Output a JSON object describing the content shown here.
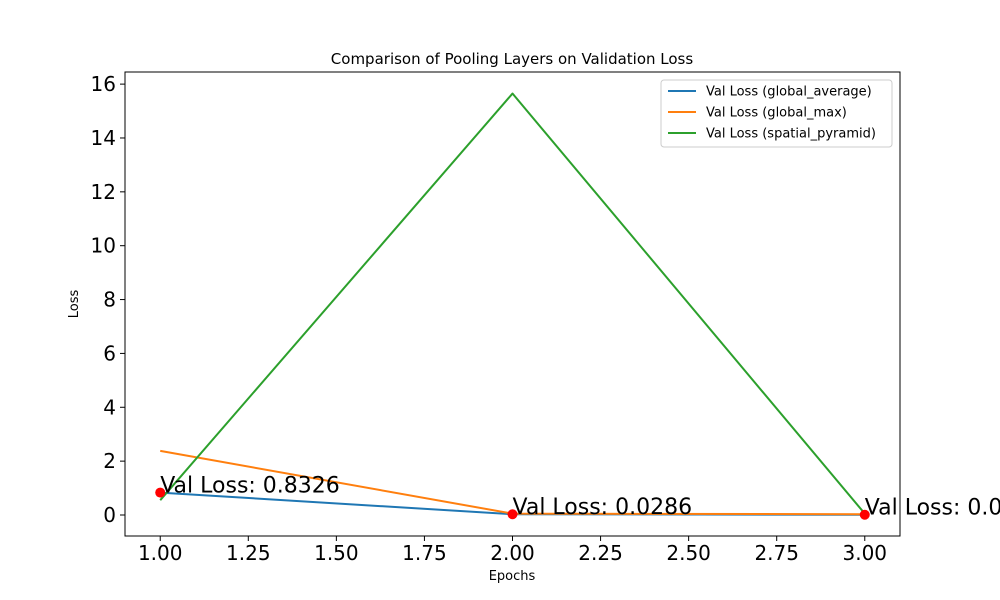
{
  "chart_data": {
    "type": "line",
    "title": "Comparison of Pooling Layers on Validation Loss",
    "xlabel": "Epochs",
    "ylabel": "Loss",
    "xlim": [
      0.9,
      3.1
    ],
    "ylim": [
      -0.78,
      16.45
    ],
    "xticks": [
      1.0,
      1.25,
      1.5,
      1.75,
      2.0,
      2.25,
      2.5,
      2.75,
      3.0
    ],
    "xtick_labels": [
      "1.00",
      "1.25",
      "1.50",
      "1.75",
      "2.00",
      "2.25",
      "2.50",
      "2.75",
      "3.00"
    ],
    "yticks": [
      0,
      2,
      4,
      6,
      8,
      10,
      12,
      14,
      16
    ],
    "ytick_labels": [
      "0",
      "2",
      "4",
      "6",
      "8",
      "10",
      "12",
      "14",
      "16"
    ],
    "grid": false,
    "legend_position": "top-right",
    "series": [
      {
        "name": "Val Loss (global_average)",
        "color": "#1f77b4",
        "x": [
          1,
          2,
          3
        ],
        "y": [
          0.8326,
          0.0286,
          0.01
        ]
      },
      {
        "name": "Val Loss (global_max)",
        "color": "#ff7f0e",
        "x": [
          1,
          2,
          3
        ],
        "y": [
          2.38,
          0.05,
          0.03
        ]
      },
      {
        "name": "Val Loss (spatial_pyramid)",
        "color": "#2ca02c",
        "x": [
          1,
          2,
          3
        ],
        "y": [
          0.55,
          15.65,
          0.05
        ]
      }
    ],
    "markers": {
      "color": "#ff0000",
      "x": [
        1,
        2,
        3
      ],
      "y": [
        0.8326,
        0.0286,
        0.01
      ]
    },
    "annotations": [
      {
        "text": "Val Loss: 0.8326",
        "x": 1,
        "y": 0.8326
      },
      {
        "text": "Val Loss: 0.0286",
        "x": 2,
        "y": 0.0286
      },
      {
        "text": "Val Loss: 0.0",
        "x": 3,
        "y": 0.01
      }
    ]
  }
}
